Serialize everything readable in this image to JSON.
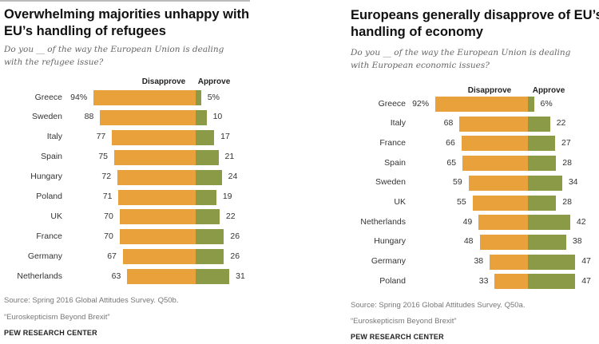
{
  "colors": {
    "disapprove": "#E9A23B",
    "approve": "#8A9A47"
  },
  "chart_data": [
    {
      "type": "bar",
      "orientation": "horizontal-diverging",
      "title": "Overwhelming majorities unhappy with EU’s handling of refugees",
      "subtitle_line1": "Do you __ of the way the European Union is dealing",
      "subtitle_line2": "with the refugee issue?",
      "categories": [
        "Greece",
        "Sweden",
        "Italy",
        "Spain",
        "Hungary",
        "Poland",
        "UK",
        "France",
        "Germany",
        "Netherlands"
      ],
      "series": [
        {
          "name": "Disapprove",
          "values": [
            94,
            88,
            77,
            75,
            72,
            71,
            70,
            70,
            67,
            63
          ]
        },
        {
          "name": "Approve",
          "values": [
            5,
            10,
            17,
            21,
            24,
            19,
            22,
            26,
            26,
            31
          ]
        }
      ],
      "first_label_suffix": "%",
      "source": "Source: Spring 2016 Global Attitudes Survey. Q50b.",
      "report": "“Euroskepticism Beyond Brexit”",
      "brand": "PEW RESEARCH CENTER"
    },
    {
      "type": "bar",
      "orientation": "horizontal-diverging",
      "title": "Europeans generally disapprove of EU’s handling of economy",
      "title_line1": "Europeans generally disapprove of EU’s",
      "title_line2": "handling of economy",
      "subtitle_line1": "Do you __ of the way the European Union is dealing",
      "subtitle_line2": "with European economic issues?",
      "categories": [
        "Greece",
        "Italy",
        "France",
        "Spain",
        "Sweden",
        "UK",
        "Netherlands",
        "Hungary",
        "Germany",
        "Poland"
      ],
      "series": [
        {
          "name": "Disapprove",
          "values": [
            92,
            68,
            66,
            65,
            59,
            55,
            49,
            48,
            38,
            33
          ]
        },
        {
          "name": "Approve",
          "values": [
            6,
            22,
            27,
            28,
            34,
            28,
            42,
            38,
            47,
            47
          ]
        }
      ],
      "first_label_suffix": "%",
      "source": "Source: Spring 2016 Global Attitudes Survey. Q50a.",
      "report": "“Euroskepticism Beyond Brexit”",
      "brand": "PEW RESEARCH CENTER"
    }
  ],
  "left_title_line1": "Overwhelming majorities unhappy with",
  "left_title_line2": "EU’s handling of refugees"
}
